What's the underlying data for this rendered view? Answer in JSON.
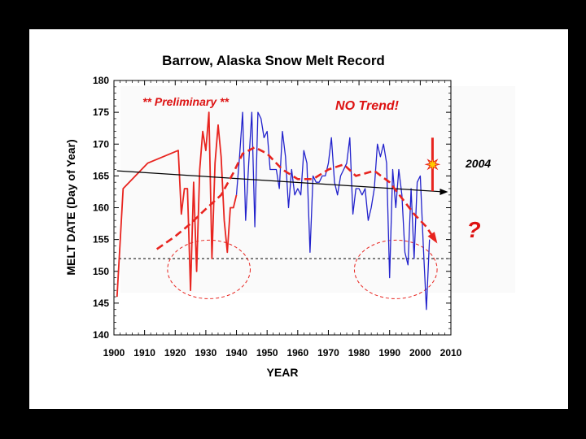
{
  "chart_data": {
    "type": "line",
    "title": "Barrow, Alaska Snow Melt Record",
    "xlabel": "YEAR",
    "ylabel": "MELT DATE (Day of Year)",
    "xlim": [
      1900,
      2010
    ],
    "ylim": [
      140,
      180
    ],
    "x_ticks": [
      "1900",
      "1910",
      "1920",
      "1930",
      "1940",
      "1950",
      "1960",
      "1970",
      "1980",
      "1990",
      "2000",
      "2010"
    ],
    "y_ticks": [
      "140",
      "145",
      "150",
      "155",
      "160",
      "165",
      "170",
      "175",
      "180"
    ],
    "grid": false,
    "colors": {
      "preliminary": "#e8241f",
      "record": "#2222cc",
      "trend": "#000000",
      "smooth": "#e8241f",
      "marker": "#ffcc00"
    },
    "series": [
      {
        "x": [
          1901,
          1903,
          1911,
          1921,
          1922,
          1923,
          1924,
          1925,
          1926,
          1927,
          1928,
          1929,
          1930,
          1931,
          1932,
          1933,
          1934,
          1935,
          1936,
          1937,
          1938,
          1939,
          1940
        ],
        "y": [
          146,
          163,
          167,
          169,
          159,
          163,
          163,
          147,
          164,
          150,
          166,
          172,
          169,
          175,
          152,
          167,
          173,
          168,
          158,
          153,
          160,
          160,
          162
        ]
      },
      {
        "x": [
          1940,
          1941,
          1942,
          1943,
          1944,
          1945,
          1946,
          1947,
          1948,
          1949,
          1950,
          1951,
          1952,
          1953,
          1954,
          1955,
          1956,
          1957,
          1958,
          1959,
          1960,
          1961,
          1962,
          1963,
          1964,
          1965,
          1966,
          1967,
          1968,
          1969,
          1970,
          1971,
          1972,
          1973,
          1974,
          1975,
          1976,
          1977,
          1978,
          1979,
          1980,
          1981,
          1982,
          1983,
          1984,
          1985,
          1986,
          1987,
          1988,
          1989,
          1990,
          1991,
          1992,
          1993,
          1994,
          1995,
          1996,
          1997,
          1998,
          1999,
          2000,
          2001,
          2002,
          2003
        ],
        "y": [
          162,
          168,
          175,
          158,
          167,
          175,
          157,
          175,
          174,
          171,
          172,
          166,
          166,
          166,
          163,
          172,
          168,
          160,
          166,
          162,
          163,
          162,
          169,
          167,
          153,
          165,
          164,
          164,
          165,
          165,
          167,
          171,
          164,
          162,
          165,
          166,
          167,
          171,
          159,
          163,
          163,
          162,
          163,
          158,
          160,
          163,
          170,
          168,
          170,
          167,
          149,
          166,
          160,
          166,
          162,
          153,
          151,
          163,
          152,
          164,
          165,
          154,
          144,
          155
        ]
      }
    ],
    "trend_line": {
      "x": [
        1901,
        2008
      ],
      "y": [
        165.8,
        162.5
      ]
    },
    "smooth_curve": {
      "x": [
        1914,
        1920,
        1925,
        1930,
        1935,
        1939,
        1942,
        1946,
        1950,
        1955,
        1960,
        1965,
        1970,
        1975,
        1979,
        1985,
        1990,
        1994,
        1998,
        2002,
        2005
      ],
      "y": [
        153.5,
        155.5,
        157.5,
        159.8,
        162,
        165.5,
        168.5,
        169.5,
        168.5,
        166,
        164.5,
        164.5,
        166,
        166.8,
        165,
        165.8,
        164,
        161.5,
        159,
        157,
        154.8
      ]
    },
    "reference_line": {
      "y": 152
    },
    "ellipses": [
      {
        "cx": 1931,
        "cy": 150.3,
        "rx": 13.5,
        "ry": 4.6
      },
      {
        "cx": 1992,
        "cy": 150.3,
        "rx": 13.5,
        "ry": 4.6
      }
    ],
    "highlight_2004": {
      "year": 2004,
      "value": 166.8,
      "range": [
        162.6,
        171
      ]
    },
    "annotations": {
      "preliminary": "** Preliminary **",
      "no_trend": "NO Trend!",
      "year_2004": "2004",
      "question": "?"
    }
  }
}
